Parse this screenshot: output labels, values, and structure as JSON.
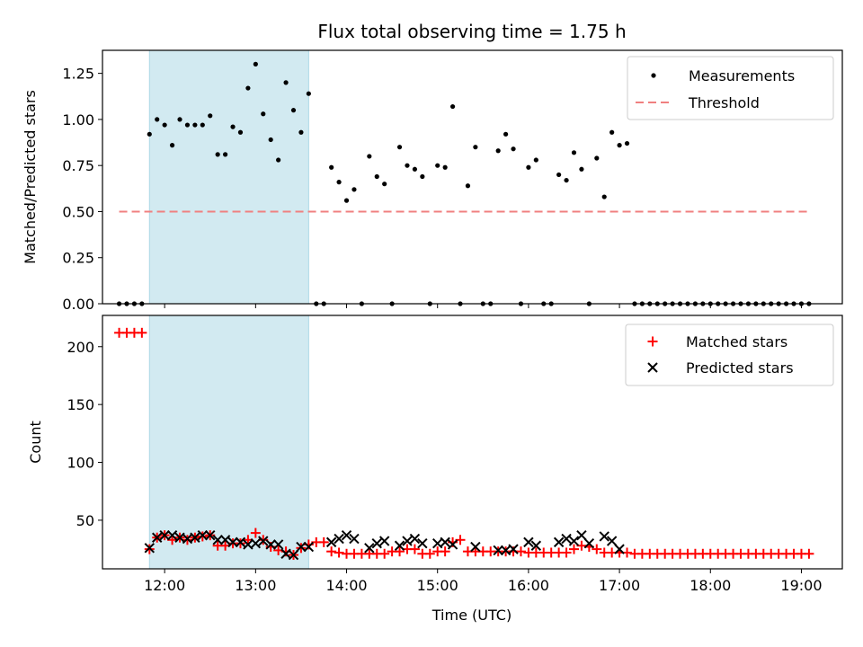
{
  "title": "Flux total observing time = 1.75 h",
  "xlabel": "Time (UTC)",
  "colors": {
    "threshold": "#f08080",
    "matched": "#ff0000",
    "predicted": "#000000",
    "span": "#add8e6"
  },
  "chart_data": [
    {
      "type": "scatter",
      "ylabel": "Matched/Predicted stars",
      "xlim": [
        "11:19",
        "19:27"
      ],
      "ylim": [
        0,
        1.375
      ],
      "yticks": [
        "0.00",
        "0.25",
        "0.50",
        "0.75",
        "1.00",
        "1.25"
      ],
      "xticks": [
        "12:00",
        "13:00",
        "14:00",
        "15:00",
        "16:00",
        "17:00",
        "18:00",
        "19:00"
      ],
      "legend_position": "top-right",
      "shaded_span": [
        "11:50",
        "13:35"
      ],
      "threshold": {
        "name": "Threshold",
        "y": 0.5,
        "x": [
          "11:30",
          "19:05"
        ]
      },
      "series": [
        {
          "name": "Measurements",
          "points": [
            [
              "11:30",
              0
            ],
            [
              "11:35",
              0
            ],
            [
              "11:40",
              0
            ],
            [
              "11:45",
              0
            ],
            [
              "11:50",
              0.92
            ],
            [
              "11:55",
              1.0
            ],
            [
              "12:00",
              0.97
            ],
            [
              "12:05",
              0.86
            ],
            [
              "12:10",
              1.0
            ],
            [
              "12:15",
              0.97
            ],
            [
              "12:20",
              0.97
            ],
            [
              "12:25",
              0.97
            ],
            [
              "12:30",
              1.02
            ],
            [
              "12:35",
              0.81
            ],
            [
              "12:40",
              0.81
            ],
            [
              "12:45",
              0.96
            ],
            [
              "12:50",
              0.93
            ],
            [
              "12:55",
              1.17
            ],
            [
              "13:00",
              1.3
            ],
            [
              "13:05",
              1.03
            ],
            [
              "13:10",
              0.89
            ],
            [
              "13:15",
              0.78
            ],
            [
              "13:20",
              1.2
            ],
            [
              "13:25",
              1.05
            ],
            [
              "13:30",
              0.93
            ],
            [
              "13:35",
              1.14
            ],
            [
              "13:40",
              0
            ],
            [
              "13:45",
              0
            ],
            [
              "13:50",
              0.74
            ],
            [
              "13:55",
              0.66
            ],
            [
              "14:00",
              0.56
            ],
            [
              "14:05",
              0.62
            ],
            [
              "14:10",
              0
            ],
            [
              "14:15",
              0.8
            ],
            [
              "14:20",
              0.69
            ],
            [
              "14:25",
              0.65
            ],
            [
              "14:30",
              0
            ],
            [
              "14:35",
              0.85
            ],
            [
              "14:40",
              0.75
            ],
            [
              "14:45",
              0.73
            ],
            [
              "14:50",
              0.69
            ],
            [
              "14:55",
              0
            ],
            [
              "15:00",
              0.75
            ],
            [
              "15:05",
              0.74
            ],
            [
              "15:10",
              1.07
            ],
            [
              "15:15",
              0
            ],
            [
              "15:20",
              0.64
            ],
            [
              "15:25",
              0.85
            ],
            [
              "15:30",
              0
            ],
            [
              "15:35",
              0
            ],
            [
              "15:40",
              0.83
            ],
            [
              "15:45",
              0.92
            ],
            [
              "15:50",
              0.84
            ],
            [
              "15:55",
              0
            ],
            [
              "16:00",
              0.74
            ],
            [
              "16:05",
              0.78
            ],
            [
              "16:10",
              0
            ],
            [
              "16:15",
              0
            ],
            [
              "16:20",
              0.7
            ],
            [
              "16:25",
              0.67
            ],
            [
              "16:30",
              0.82
            ],
            [
              "16:35",
              0.73
            ],
            [
              "16:40",
              0
            ],
            [
              "16:45",
              0.79
            ],
            [
              "16:50",
              0.58
            ],
            [
              "16:55",
              0.93
            ],
            [
              "17:00",
              0.86
            ],
            [
              "17:05",
              0.87
            ],
            [
              "17:10",
              0
            ],
            [
              "17:15",
              0
            ],
            [
              "17:20",
              0
            ],
            [
              "17:25",
              0
            ],
            [
              "17:30",
              0
            ],
            [
              "17:35",
              0
            ],
            [
              "17:40",
              0
            ],
            [
              "17:45",
              0
            ],
            [
              "17:50",
              0
            ],
            [
              "17:55",
              0
            ],
            [
              "18:00",
              0
            ],
            [
              "18:05",
              0
            ],
            [
              "18:10",
              0
            ],
            [
              "18:15",
              0
            ],
            [
              "18:20",
              0
            ],
            [
              "18:25",
              0
            ],
            [
              "18:30",
              0
            ],
            [
              "18:35",
              0
            ],
            [
              "18:40",
              0
            ],
            [
              "18:45",
              0
            ],
            [
              "18:50",
              0
            ],
            [
              "18:55",
              0
            ],
            [
              "19:00",
              0
            ],
            [
              "19:05",
              0
            ]
          ]
        }
      ]
    },
    {
      "type": "scatter",
      "ylabel": "Count",
      "xlim": [
        "11:19",
        "19:27"
      ],
      "ylim": [
        8,
        227
      ],
      "yticks": [
        "50",
        "100",
        "150",
        "200"
      ],
      "xticks": [
        "12:00",
        "13:00",
        "14:00",
        "15:00",
        "16:00",
        "17:00",
        "18:00",
        "19:00"
      ],
      "legend_position": "top-right",
      "shaded_span": [
        "11:50",
        "13:35"
      ],
      "series": [
        {
          "name": "Matched stars",
          "marker": "plus",
          "points": [
            [
              "11:30",
              212
            ],
            [
              "11:35",
              212
            ],
            [
              "11:40",
              212
            ],
            [
              "11:45",
              212
            ],
            [
              "11:50",
              25
            ],
            [
              "11:55",
              35
            ],
            [
              "12:00",
              37
            ],
            [
              "12:05",
              33
            ],
            [
              "12:10",
              35
            ],
            [
              "12:15",
              33
            ],
            [
              "12:20",
              35
            ],
            [
              "12:25",
              36
            ],
            [
              "12:30",
              37
            ],
            [
              "12:35",
              28
            ],
            [
              "12:40",
              28
            ],
            [
              "12:45",
              30
            ],
            [
              "12:50",
              30
            ],
            [
              "12:55",
              33
            ],
            [
              "13:00",
              39
            ],
            [
              "13:05",
              33
            ],
            [
              "13:10",
              27
            ],
            [
              "13:15",
              24
            ],
            [
              "13:20",
              23
            ],
            [
              "13:25",
              20
            ],
            [
              "13:30",
              26
            ],
            [
              "13:35",
              29
            ],
            [
              "13:40",
              31
            ],
            [
              "13:45",
              31
            ],
            [
              "13:50",
              23
            ],
            [
              "13:55",
              22
            ],
            [
              "14:00",
              21
            ],
            [
              "14:05",
              21
            ],
            [
              "14:10",
              21
            ],
            [
              "14:15",
              21
            ],
            [
              "14:20",
              21
            ],
            [
              "14:25",
              21
            ],
            [
              "14:30",
              23
            ],
            [
              "14:35",
              23
            ],
            [
              "14:40",
              25
            ],
            [
              "14:45",
              25
            ],
            [
              "14:50",
              21
            ],
            [
              "14:55",
              21
            ],
            [
              "15:00",
              23
            ],
            [
              "15:05",
              23
            ],
            [
              "15:10",
              31
            ],
            [
              "15:15",
              33
            ],
            [
              "15:20",
              23
            ],
            [
              "15:25",
              23
            ],
            [
              "15:30",
              23
            ],
            [
              "15:35",
              23
            ],
            [
              "15:40",
              23
            ],
            [
              "15:45",
              23
            ],
            [
              "15:50",
              23
            ],
            [
              "15:55",
              23
            ],
            [
              "16:00",
              22
            ],
            [
              "16:05",
              22
            ],
            [
              "16:10",
              22
            ],
            [
              "16:15",
              22
            ],
            [
              "16:20",
              22
            ],
            [
              "16:25",
              22
            ],
            [
              "16:30",
              25
            ],
            [
              "16:35",
              28
            ],
            [
              "16:40",
              27
            ],
            [
              "16:45",
              25
            ],
            [
              "16:50",
              22
            ],
            [
              "16:55",
              22
            ],
            [
              "17:00",
              22
            ],
            [
              "17:05",
              22
            ],
            [
              "17:10",
              21
            ],
            [
              "17:15",
              21
            ],
            [
              "17:20",
              21
            ],
            [
              "17:25",
              21
            ],
            [
              "17:30",
              21
            ],
            [
              "17:35",
              21
            ],
            [
              "17:40",
              21
            ],
            [
              "17:45",
              21
            ],
            [
              "17:50",
              21
            ],
            [
              "17:55",
              21
            ],
            [
              "18:00",
              21
            ],
            [
              "18:05",
              21
            ],
            [
              "18:10",
              21
            ],
            [
              "18:15",
              21
            ],
            [
              "18:20",
              21
            ],
            [
              "18:25",
              21
            ],
            [
              "18:30",
              21
            ],
            [
              "18:35",
              21
            ],
            [
              "18:40",
              21
            ],
            [
              "18:45",
              21
            ],
            [
              "18:50",
              21
            ],
            [
              "18:55",
              21
            ],
            [
              "19:00",
              21
            ],
            [
              "19:05",
              21
            ]
          ]
        },
        {
          "name": "Predicted stars",
          "marker": "x",
          "points": [
            [
              "11:50",
              26
            ],
            [
              "11:55",
              35
            ],
            [
              "12:00",
              37
            ],
            [
              "12:05",
              37
            ],
            [
              "12:10",
              35
            ],
            [
              "12:15",
              34
            ],
            [
              "12:20",
              35
            ],
            [
              "12:25",
              37
            ],
            [
              "12:30",
              37
            ],
            [
              "12:35",
              33
            ],
            [
              "12:40",
              33
            ],
            [
              "12:45",
              31
            ],
            [
              "12:50",
              31
            ],
            [
              "12:55",
              29
            ],
            [
              "13:00",
              30
            ],
            [
              "13:05",
              32
            ],
            [
              "13:10",
              29
            ],
            [
              "13:15",
              29
            ],
            [
              "13:20",
              21
            ],
            [
              "13:25",
              20
            ],
            [
              "13:30",
              27
            ],
            [
              "13:35",
              27
            ],
            [
              "13:50",
              31
            ],
            [
              "13:55",
              34
            ],
            [
              "14:00",
              37
            ],
            [
              "14:05",
              34
            ],
            [
              "14:15",
              26
            ],
            [
              "14:20",
              30
            ],
            [
              "14:25",
              32
            ],
            [
              "14:35",
              28
            ],
            [
              "14:40",
              32
            ],
            [
              "14:45",
              34
            ],
            [
              "14:50",
              30
            ],
            [
              "15:00",
              30
            ],
            [
              "15:05",
              31
            ],
            [
              "15:10",
              29
            ],
            [
              "15:25",
              27
            ],
            [
              "15:40",
              24
            ],
            [
              "15:45",
              24
            ],
            [
              "15:50",
              25
            ],
            [
              "16:00",
              31
            ],
            [
              "16:05",
              28
            ],
            [
              "16:20",
              31
            ],
            [
              "16:25",
              34
            ],
            [
              "16:30",
              32
            ],
            [
              "16:35",
              37
            ],
            [
              "16:40",
              30
            ],
            [
              "16:50",
              36
            ],
            [
              "16:55",
              32
            ],
            [
              "17:00",
              25
            ]
          ]
        }
      ]
    }
  ]
}
